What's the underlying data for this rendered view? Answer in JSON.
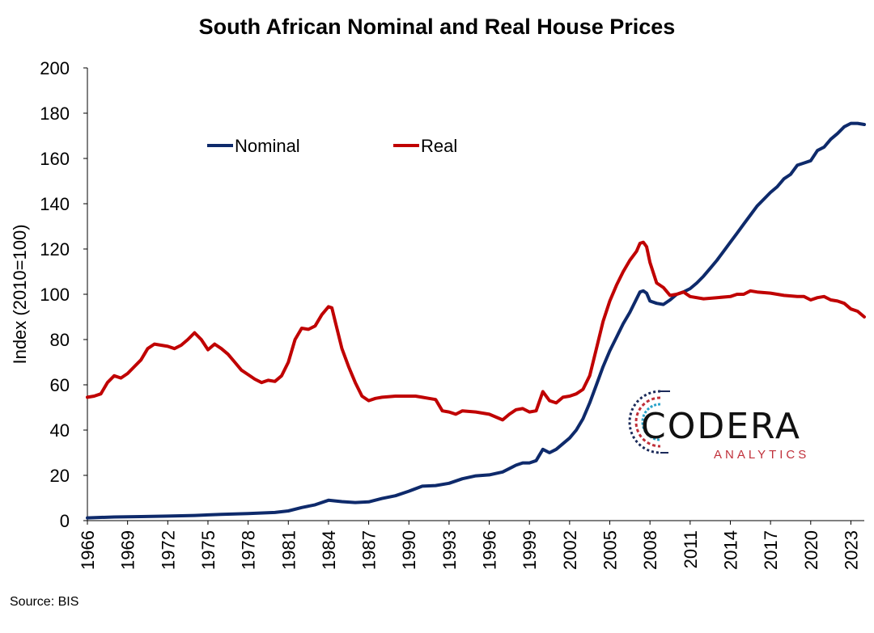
{
  "source": "Source: BIS",
  "logo": {
    "name": "CODERA",
    "sub": "ANALYTICS",
    "color_a": "#1b2a5a",
    "color_b": "#c0303a",
    "color_c": "#29a3c9"
  },
  "chart_data": {
    "type": "line",
    "title": "South African Nominal and Real House Prices",
    "ylabel": "Index (2010=100)",
    "xlabel": "",
    "ylim": [
      0,
      200
    ],
    "xlim": [
      1966,
      2024
    ],
    "yticks": [
      0,
      20,
      40,
      60,
      80,
      100,
      120,
      140,
      160,
      180,
      200
    ],
    "xticks": [
      "1966",
      "1969",
      "1972",
      "1975",
      "1978",
      "1981",
      "1984",
      "1987",
      "1990",
      "1993",
      "1996",
      "1999",
      "2002",
      "2005",
      "2008",
      "2011",
      "2014",
      "2017",
      "2020",
      "2023"
    ],
    "grid": false,
    "legend_position": "top-left",
    "series": [
      {
        "name": "Nominal",
        "color": "#0e2a6b",
        "x": [
          1966,
          1968,
          1970,
          1972,
          1974,
          1976,
          1978,
          1980,
          1981,
          1982,
          1983,
          1984,
          1985,
          1986,
          1987,
          1988,
          1989,
          1990,
          1991,
          1992,
          1993,
          1994,
          1995,
          1996,
          1997,
          1998,
          1998.5,
          1999,
          1999.5,
          2000,
          2000.5,
          2001,
          2001.5,
          2002,
          2002.5,
          2003,
          2003.5,
          2004,
          2004.5,
          2005,
          2005.5,
          2006,
          2006.5,
          2007,
          2007.25,
          2007.5,
          2007.75,
          2008,
          2008.5,
          2009,
          2009.5,
          2010,
          2010.5,
          2011,
          2011.5,
          2012,
          2012.5,
          2013,
          2013.5,
          2014,
          2014.5,
          2015,
          2015.5,
          2016,
          2016.5,
          2017,
          2017.5,
          2018,
          2018.5,
          2019,
          2019.5,
          2020,
          2020.5,
          2021,
          2021.5,
          2022,
          2022.5,
          2023,
          2023.5,
          2024
        ],
        "values": [
          1.2,
          1.6,
          1.8,
          2.0,
          2.3,
          2.8,
          3.1,
          3.6,
          4.3,
          5.8,
          7.0,
          9.0,
          8.4,
          8.0,
          8.3,
          9.8,
          11.0,
          13.0,
          15.2,
          15.5,
          16.5,
          18.5,
          19.8,
          20.2,
          21.5,
          24.5,
          25.5,
          25.5,
          26.5,
          31.5,
          30.0,
          31.5,
          34.0,
          36.5,
          40.0,
          45.0,
          52.0,
          60.0,
          68.0,
          75.0,
          81.0,
          87.0,
          92.0,
          98.0,
          101.0,
          101.5,
          100.5,
          97.0,
          96.0,
          95.5,
          97.5,
          100.0,
          101.0,
          102.5,
          105.0,
          108.0,
          111.5,
          115.0,
          119.0,
          123.0,
          127.0,
          131.0,
          135.0,
          139.0,
          142.0,
          145.0,
          147.5,
          151.0,
          153.0,
          157.0,
          158.0,
          159.0,
          163.5,
          165.0,
          168.5,
          171.0,
          174.0,
          175.5,
          175.5,
          175.0
        ]
      },
      {
        "name": "Real",
        "color": "#c00000",
        "x": [
          1966,
          1966.5,
          1967,
          1967.5,
          1968,
          1968.5,
          1969,
          1969.5,
          1970,
          1970.5,
          1971,
          1971.5,
          1972,
          1972.5,
          1973,
          1973.5,
          1974,
          1974.5,
          1975,
          1975.5,
          1976,
          1976.5,
          1977,
          1977.5,
          1978,
          1978.5,
          1979,
          1979.5,
          1980,
          1980.5,
          1981,
          1981.5,
          1982,
          1982.5,
          1983,
          1983.5,
          1984,
          1984.25,
          1984.5,
          1985,
          1985.5,
          1986,
          1986.5,
          1987,
          1987.5,
          1988,
          1989,
          1990,
          1990.5,
          1991,
          1991.5,
          1992,
          1992.5,
          1993,
          1993.5,
          1994,
          1995,
          1996,
          1997,
          1997.5,
          1998,
          1998.5,
          1999,
          1999.5,
          2000,
          2000.5,
          2001,
          2001.5,
          2002,
          2002.5,
          2003,
          2003.5,
          2004,
          2004.5,
          2005,
          2005.5,
          2006,
          2006.5,
          2007,
          2007.25,
          2007.5,
          2007.75,
          2008,
          2008.5,
          2009,
          2009.5,
          2010,
          2010.5,
          2011,
          2012,
          2013,
          2014,
          2014.5,
          2015,
          2015.5,
          2016,
          2017,
          2018,
          2019,
          2019.5,
          2020,
          2020.5,
          2021,
          2021.5,
          2022,
          2022.5,
          2023,
          2023.5,
          2024
        ],
        "values": [
          54.5,
          55.0,
          56.0,
          61.0,
          64.0,
          63.0,
          65.0,
          68.0,
          71.0,
          76.0,
          78.0,
          77.5,
          77.0,
          76.0,
          77.5,
          80.0,
          83.0,
          80.0,
          75.5,
          78.0,
          76.0,
          73.5,
          70.0,
          66.5,
          64.5,
          62.5,
          61.0,
          62.0,
          61.5,
          64.0,
          70.0,
          80.0,
          85.0,
          84.5,
          86.0,
          91.0,
          94.5,
          94.0,
          88.0,
          76.0,
          68.0,
          61.0,
          55.0,
          53.0,
          54.0,
          54.5,
          55.0,
          55.0,
          55.0,
          54.5,
          54.0,
          53.5,
          48.5,
          48.0,
          47.0,
          48.5,
          48.0,
          47.0,
          44.5,
          47.0,
          49.0,
          49.5,
          48.0,
          48.5,
          57.0,
          53.0,
          52.0,
          54.5,
          55.0,
          56.0,
          58.0,
          64.0,
          76.0,
          88.0,
          97.0,
          104.0,
          110.0,
          115.0,
          119.0,
          122.5,
          123.0,
          121.0,
          114.0,
          105.0,
          103.0,
          99.5,
          100.0,
          101.0,
          99.0,
          98.0,
          98.5,
          99.0,
          100.0,
          100.0,
          101.5,
          101.0,
          100.5,
          99.5,
          99.0,
          99.0,
          97.5,
          98.5,
          99.0,
          97.5,
          97.0,
          96.0,
          93.5,
          92.5,
          90.0
        ]
      }
    ]
  }
}
